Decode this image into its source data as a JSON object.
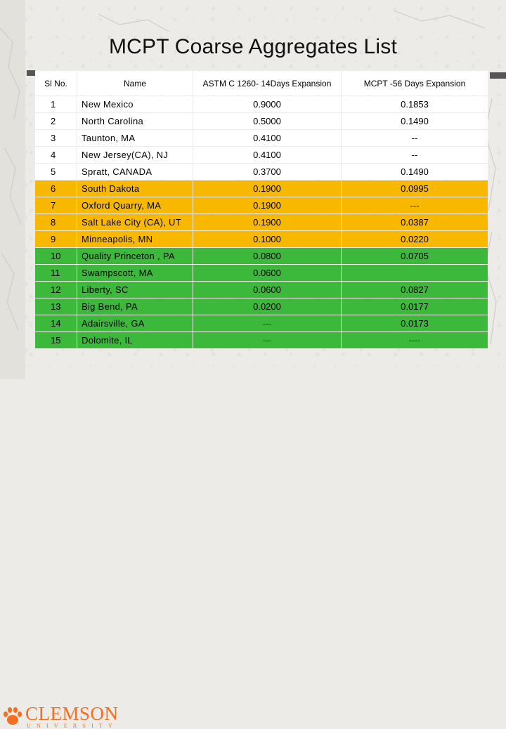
{
  "slide": {
    "title": "MCPT Coarse Aggregates List"
  },
  "table": {
    "headers": [
      "Sl No.",
      "Name",
      "ASTM C 1260- 14Days Expansion",
      "MCPT -56 Days  Expansion"
    ],
    "rows": [
      {
        "sl": "1",
        "name": "New Mexico",
        "astm": "0.9000",
        "mcpt": "0.1853",
        "group": "white"
      },
      {
        "sl": "2",
        "name": "North Carolina",
        "astm": "0.5000",
        "mcpt": "0.1490",
        "group": "white"
      },
      {
        "sl": "3",
        "name": "Taunton, MA",
        "astm": "0.4100",
        "mcpt": "--",
        "group": "white"
      },
      {
        "sl": "4",
        "name": "New Jersey(CA), NJ",
        "astm": "0.4100",
        "mcpt": "--",
        "group": "white"
      },
      {
        "sl": "5",
        "name": "Spratt, CANADA",
        "astm": "0.3700",
        "mcpt": "0.1490",
        "group": "white"
      },
      {
        "sl": "6",
        "name": "South Dakota",
        "astm": "0.1900",
        "mcpt": "0.0995",
        "group": "orange"
      },
      {
        "sl": "7",
        "name": "Oxford Quarry, MA",
        "astm": "0.1900",
        "mcpt": "---",
        "group": "orange"
      },
      {
        "sl": "8",
        "name": "Salt Lake City (CA), UT",
        "astm": "0.1900",
        "mcpt": "0.0387",
        "group": "orange"
      },
      {
        "sl": "9",
        "name": "Minneapolis, MN",
        "astm": "0.1000",
        "mcpt": "0.0220",
        "group": "orange"
      },
      {
        "sl": "10",
        "name": " Quality Princeton , PA",
        "astm": "0.0800",
        "mcpt": "0.0705",
        "group": "green"
      },
      {
        "sl": "11",
        "name": "Swampscott, MA",
        "astm": "0.0600",
        "mcpt": "",
        "group": "green"
      },
      {
        "sl": "12",
        "name": "Liberty, SC",
        "astm": "0.0600",
        "mcpt": "0.0827",
        "group": "green"
      },
      {
        "sl": "13",
        "name": "Big Bend, PA",
        "astm": "0.0200",
        "mcpt": "0.0177",
        "group": "green"
      },
      {
        "sl": "14",
        "name": " Adairsville, GA",
        "astm": "---",
        "mcpt": "0.0173",
        "group": "green"
      },
      {
        "sl": "15",
        "name": " Dolomite, IL",
        "astm": "---",
        "mcpt": "----",
        "group": "green"
      }
    ]
  },
  "logo": {
    "name": "CLEMSON",
    "sub": "UNIVERSITY",
    "icon": "tiger-paw-icon"
  },
  "colors": {
    "white_group": "#ffffff",
    "orange_group": "#f9b800",
    "green_group": "#3cb93a",
    "brand_orange": "#f36f21"
  }
}
